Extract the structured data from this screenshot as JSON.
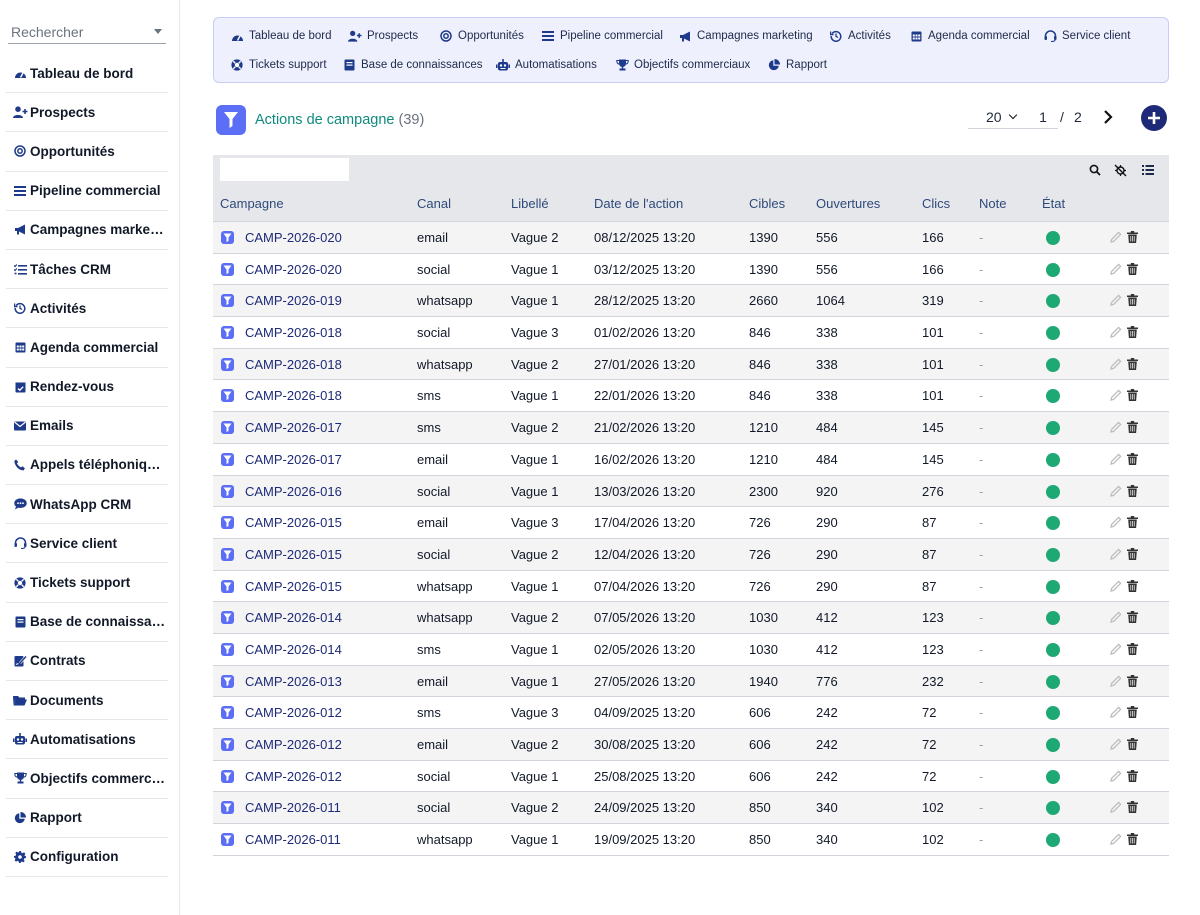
{
  "search": {
    "placeholder": "Rechercher"
  },
  "sidebar": {
    "items": [
      {
        "label": "Tableau de bord",
        "icon": "dashboard-icon"
      },
      {
        "label": "Prospects",
        "icon": "user-plus-icon"
      },
      {
        "label": "Opportunités",
        "icon": "target-icon"
      },
      {
        "label": "Pipeline commercial",
        "icon": "list-icon"
      },
      {
        "label": "Campagnes marketing",
        "icon": "megaphone-icon"
      },
      {
        "label": "Tâches CRM",
        "icon": "task-list-icon"
      },
      {
        "label": "Activités",
        "icon": "history-icon"
      },
      {
        "label": "Agenda commercial",
        "icon": "calendar-icon"
      },
      {
        "label": "Rendez-vous",
        "icon": "calendar-check-icon"
      },
      {
        "label": "Emails",
        "icon": "envelope-icon"
      },
      {
        "label": "Appels téléphoniques",
        "icon": "phone-icon"
      },
      {
        "label": "WhatsApp CRM",
        "icon": "chat-icon"
      },
      {
        "label": "Service client",
        "icon": "headset-icon"
      },
      {
        "label": "Tickets support",
        "icon": "lifebuoy-icon"
      },
      {
        "label": "Base de connaissances",
        "icon": "book-icon"
      },
      {
        "label": "Contrats",
        "icon": "signature-icon"
      },
      {
        "label": "Documents",
        "icon": "folder-icon"
      },
      {
        "label": "Automatisations",
        "icon": "robot-icon"
      },
      {
        "label": "Objectifs commerciaux",
        "icon": "trophy-icon"
      },
      {
        "label": "Rapport",
        "icon": "pie-chart-icon"
      },
      {
        "label": "Configuration",
        "icon": "gear-icon"
      }
    ]
  },
  "topmenu": {
    "items": [
      {
        "label": "Tableau de bord",
        "icon": "dashboard-icon"
      },
      {
        "label": "Prospects",
        "icon": "user-plus-icon"
      },
      {
        "label": "Opportunités",
        "icon": "target-icon"
      },
      {
        "label": "Pipeline commercial",
        "icon": "list-icon"
      },
      {
        "label": "Campagnes marketing",
        "icon": "megaphone-icon"
      },
      {
        "label": "Activités",
        "icon": "history-icon"
      },
      {
        "label": "Agenda commercial",
        "icon": "calendar-icon"
      },
      {
        "label": "Service client",
        "icon": "headset-icon"
      },
      {
        "label": "Tickets support",
        "icon": "lifebuoy-icon"
      },
      {
        "label": "Base de connaissances",
        "icon": "book-icon"
      },
      {
        "label": "Automatisations",
        "icon": "robot-icon"
      },
      {
        "label": "Objectifs commerciaux",
        "icon": "trophy-icon"
      },
      {
        "label": "Rapport",
        "icon": "pie-chart-icon"
      }
    ]
  },
  "header": {
    "title": "Actions de campagne",
    "count": "(39)",
    "page_size": "20",
    "page": "1",
    "page_sep": "/",
    "page_total": "2"
  },
  "table": {
    "columns": [
      "Campagne",
      "Canal",
      "Libellé",
      "Date de l'action",
      "Cibles",
      "Ouvertures",
      "Clics",
      "Note",
      "État"
    ],
    "rows": [
      {
        "campagne": "CAMP-2026-020",
        "canal": "email",
        "libelle": "Vague 2",
        "date": "08/12/2025 13:20",
        "cibles": "1390",
        "ouvertures": "556",
        "clics": "166",
        "note": "-"
      },
      {
        "campagne": "CAMP-2026-020",
        "canal": "social",
        "libelle": "Vague 1",
        "date": "03/12/2025 13:20",
        "cibles": "1390",
        "ouvertures": "556",
        "clics": "166",
        "note": "-"
      },
      {
        "campagne": "CAMP-2026-019",
        "canal": "whatsapp",
        "libelle": "Vague 1",
        "date": "28/12/2025 13:20",
        "cibles": "2660",
        "ouvertures": "1064",
        "clics": "319",
        "note": "-"
      },
      {
        "campagne": "CAMP-2026-018",
        "canal": "social",
        "libelle": "Vague 3",
        "date": "01/02/2026 13:20",
        "cibles": "846",
        "ouvertures": "338",
        "clics": "101",
        "note": "-"
      },
      {
        "campagne": "CAMP-2026-018",
        "canal": "whatsapp",
        "libelle": "Vague 2",
        "date": "27/01/2026 13:20",
        "cibles": "846",
        "ouvertures": "338",
        "clics": "101",
        "note": "-"
      },
      {
        "campagne": "CAMP-2026-018",
        "canal": "sms",
        "libelle": "Vague 1",
        "date": "22/01/2026 13:20",
        "cibles": "846",
        "ouvertures": "338",
        "clics": "101",
        "note": "-"
      },
      {
        "campagne": "CAMP-2026-017",
        "canal": "sms",
        "libelle": "Vague 2",
        "date": "21/02/2026 13:20",
        "cibles": "1210",
        "ouvertures": "484",
        "clics": "145",
        "note": "-"
      },
      {
        "campagne": "CAMP-2026-017",
        "canal": "email",
        "libelle": "Vague 1",
        "date": "16/02/2026 13:20",
        "cibles": "1210",
        "ouvertures": "484",
        "clics": "145",
        "note": "-"
      },
      {
        "campagne": "CAMP-2026-016",
        "canal": "social",
        "libelle": "Vague 1",
        "date": "13/03/2026 13:20",
        "cibles": "2300",
        "ouvertures": "920",
        "clics": "276",
        "note": "-"
      },
      {
        "campagne": "CAMP-2026-015",
        "canal": "email",
        "libelle": "Vague 3",
        "date": "17/04/2026 13:20",
        "cibles": "726",
        "ouvertures": "290",
        "clics": "87",
        "note": "-"
      },
      {
        "campagne": "CAMP-2026-015",
        "canal": "social",
        "libelle": "Vague 2",
        "date": "12/04/2026 13:20",
        "cibles": "726",
        "ouvertures": "290",
        "clics": "87",
        "note": "-"
      },
      {
        "campagne": "CAMP-2026-015",
        "canal": "whatsapp",
        "libelle": "Vague 1",
        "date": "07/04/2026 13:20",
        "cibles": "726",
        "ouvertures": "290",
        "clics": "87",
        "note": "-"
      },
      {
        "campagne": "CAMP-2026-014",
        "canal": "whatsapp",
        "libelle": "Vague 2",
        "date": "07/05/2026 13:20",
        "cibles": "1030",
        "ouvertures": "412",
        "clics": "123",
        "note": "-"
      },
      {
        "campagne": "CAMP-2026-014",
        "canal": "sms",
        "libelle": "Vague 1",
        "date": "02/05/2026 13:20",
        "cibles": "1030",
        "ouvertures": "412",
        "clics": "123",
        "note": "-"
      },
      {
        "campagne": "CAMP-2026-013",
        "canal": "email",
        "libelle": "Vague 1",
        "date": "27/05/2026 13:20",
        "cibles": "1940",
        "ouvertures": "776",
        "clics": "232",
        "note": "-"
      },
      {
        "campagne": "CAMP-2026-012",
        "canal": "sms",
        "libelle": "Vague 3",
        "date": "04/09/2025 13:20",
        "cibles": "606",
        "ouvertures": "242",
        "clics": "72",
        "note": "-"
      },
      {
        "campagne": "CAMP-2026-012",
        "canal": "email",
        "libelle": "Vague 2",
        "date": "30/08/2025 13:20",
        "cibles": "606",
        "ouvertures": "242",
        "clics": "72",
        "note": "-"
      },
      {
        "campagne": "CAMP-2026-012",
        "canal": "social",
        "libelle": "Vague 1",
        "date": "25/08/2025 13:20",
        "cibles": "606",
        "ouvertures": "242",
        "clics": "72",
        "note": "-"
      },
      {
        "campagne": "CAMP-2026-011",
        "canal": "social",
        "libelle": "Vague 2",
        "date": "24/09/2025 13:20",
        "cibles": "850",
        "ouvertures": "340",
        "clics": "102",
        "note": "-"
      },
      {
        "campagne": "CAMP-2026-011",
        "canal": "whatsapp",
        "libelle": "Vague 1",
        "date": "19/09/2025 13:20",
        "cibles": "850",
        "ouvertures": "340",
        "clics": "102",
        "note": "-"
      }
    ]
  },
  "colors": {
    "accent": "#5b6ef5",
    "title": "#0f8a7e",
    "status_active": "#1ea874",
    "link": "#1e2a78"
  }
}
